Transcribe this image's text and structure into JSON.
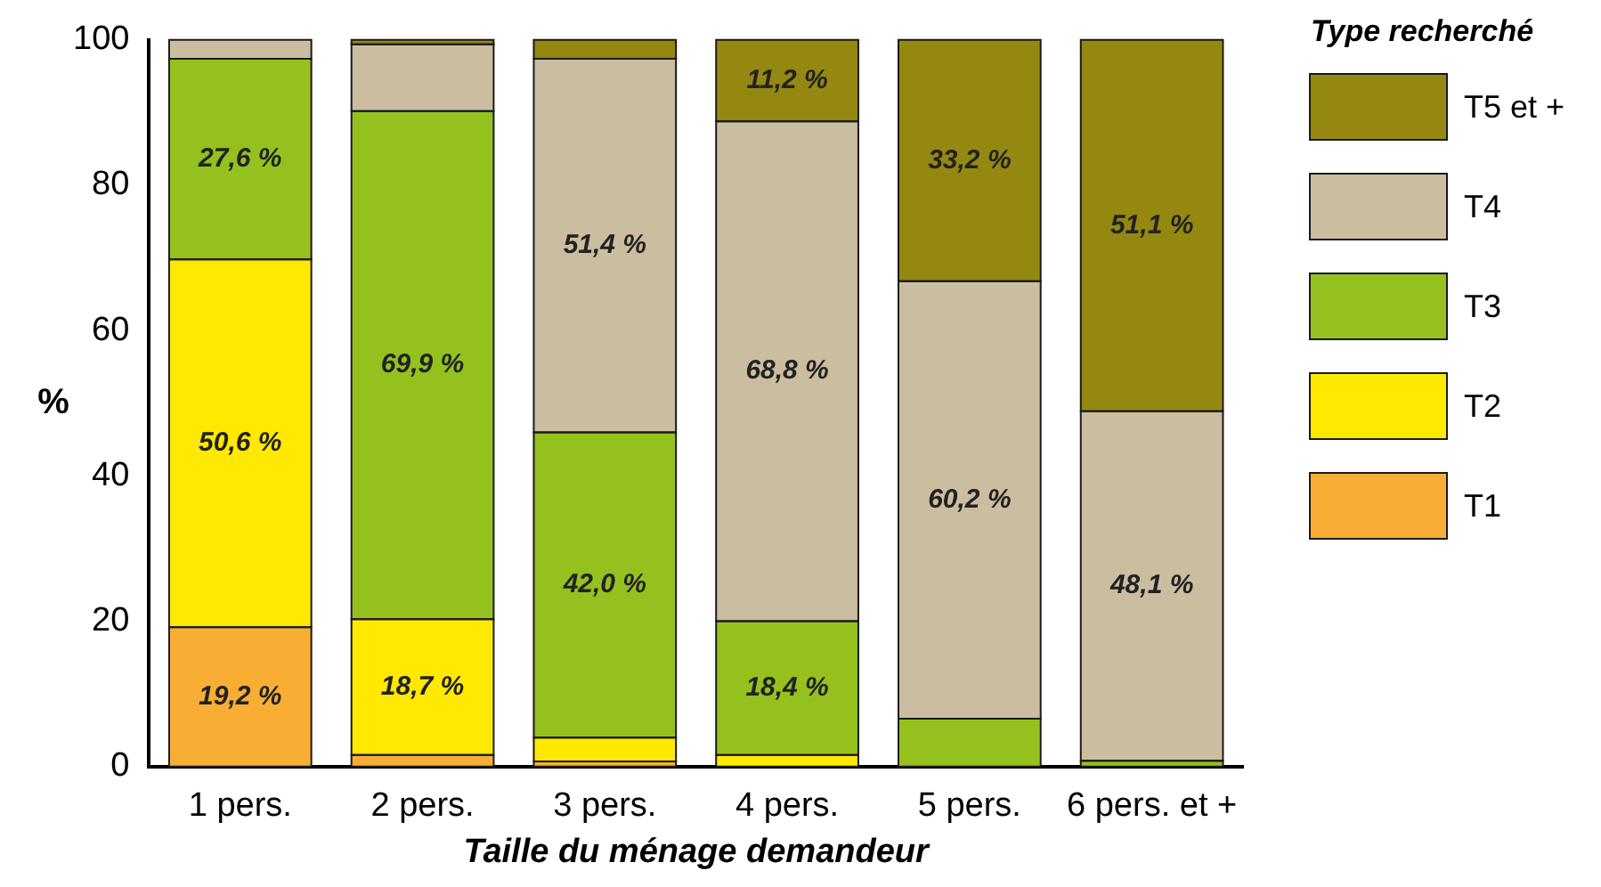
{
  "chart_data": {
    "type": "bar",
    "stacked": true,
    "xlabel": "Taille du ménage demandeur",
    "ylabel": "%",
    "legend_title": "Type recherché",
    "legend": "right",
    "categories": [
      "1 pers.",
      "2 pers.",
      "3 pers.",
      "4 pers.",
      "5 pers.",
      "6 pers. et +"
    ],
    "ylim": [
      0,
      100
    ],
    "yticks": [
      0,
      20,
      40,
      60,
      80,
      100
    ],
    "grid": false,
    "series": [
      {
        "name": "T1",
        "color": "#f8ae35",
        "values": [
          19.2,
          1.6,
          0.7,
          0,
          0,
          0
        ],
        "value_labels": [
          "19,2 %",
          null,
          null,
          null,
          null,
          null
        ]
      },
      {
        "name": "T2",
        "color": "#ffe900",
        "values": [
          50.6,
          18.7,
          3.3,
          1.6,
          0,
          0
        ],
        "value_labels": [
          "50,6 %",
          "18,7 %",
          null,
          null,
          null,
          null
        ]
      },
      {
        "name": "T3",
        "color": "#95c11f",
        "values": [
          27.6,
          69.9,
          42.0,
          18.4,
          6.6,
          0.8
        ],
        "value_labels": [
          "27,6 %",
          "69,9 %",
          "42,0 %",
          "18,4 %",
          null,
          null
        ]
      },
      {
        "name": "T4",
        "color": "#cbbda0",
        "values": [
          2.6,
          9.2,
          51.4,
          68.8,
          60.2,
          48.1
        ],
        "value_labels": [
          null,
          null,
          "51,4 %",
          "68,8 %",
          "60,2 %",
          "48,1 %"
        ]
      },
      {
        "name": "T5 et +",
        "color": "#958811",
        "values": [
          0,
          0.6,
          2.6,
          11.2,
          33.2,
          51.1
        ],
        "value_labels": [
          null,
          null,
          null,
          "11,2 %",
          "33,2 %",
          "51,1 %"
        ]
      }
    ]
  }
}
